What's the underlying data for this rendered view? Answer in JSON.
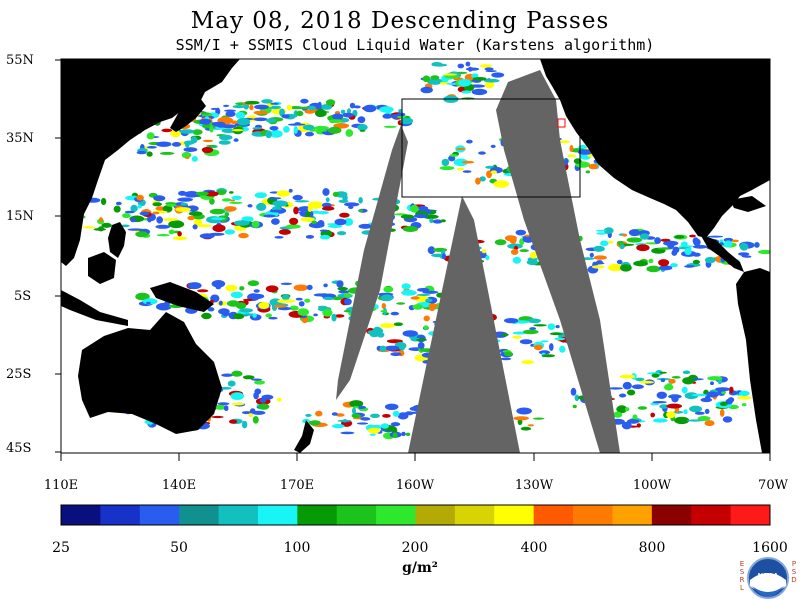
{
  "header": {
    "title": "May 08, 2018  Descending Passes",
    "subtitle": "SSM/I + SSMIS Cloud Liquid Water (Karstens algorithm)"
  },
  "axes": {
    "latitude_labels": [
      "55N",
      "35N",
      "15N",
      "5S",
      "25S",
      "45S"
    ],
    "longitude_labels": [
      "110E",
      "140E",
      "170E",
      "160W",
      "130W",
      "100W",
      "70W"
    ]
  },
  "colorbar": {
    "labels": [
      "25",
      "50",
      "100",
      "200",
      "400",
      "800",
      "1600"
    ],
    "unit": "g/m²",
    "colors": [
      "#0a0f80",
      "#1632c8",
      "#2a5cf0",
      "#10908f",
      "#12c0c0",
      "#19f5f5",
      "#079a07",
      "#1bc31b",
      "#2ee82e",
      "#b4aa06",
      "#d8d404",
      "#ffff00",
      "#ff5a00",
      "#ff7a00",
      "#ffa200",
      "#8b0000",
      "#c40000",
      "#ff1a1a"
    ]
  },
  "logo": {
    "left_text": "ESRL",
    "right_text": "PSD",
    "center_text": "NOAA"
  },
  "colors": {
    "land": "#000000",
    "no_data_swath": "#646464",
    "ocean_clear": "#ffffff"
  }
}
